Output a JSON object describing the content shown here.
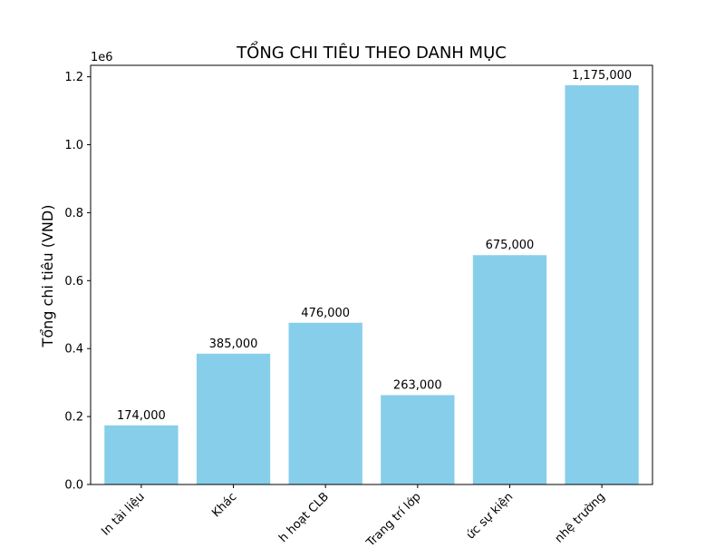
{
  "chart_data": {
    "type": "bar",
    "title": "TỔNG CHI TIÊU THEO DANH MỤC",
    "xlabel": "",
    "ylabel": "Tổng chi tiêu (VND)",
    "y_offset_label": "1e6",
    "categories": [
      "In tài liệu",
      "Khác",
      "Sinh hoạt CLB",
      "Trang trí lớp",
      "Tổ chức sự kiện",
      "Đồ dùng văn phòng phẩm / trang thiết bị nhà trường"
    ],
    "category_display": [
      "In tài liệu",
      "Khác",
      "h hoạt CLB",
      "Trang trí lớp",
      "ức sự kiện",
      "nhệ trường"
    ],
    "values": [
      174000,
      385000,
      476000,
      263000,
      675000,
      1175000
    ],
    "value_labels": [
      "174,000",
      "385,000",
      "476,000",
      "263,000",
      "675,000",
      "1,175,000"
    ],
    "ylim": [
      0,
      1233750
    ],
    "y_ticks": [
      0,
      200000,
      400000,
      600000,
      800000,
      1000000,
      1200000
    ],
    "y_tick_labels": [
      "0.0",
      "0.2",
      "0.4",
      "0.6",
      "0.8",
      "1.0",
      "1.2"
    ],
    "bar_color": "#87ceeb",
    "grid": false,
    "legend": "none"
  }
}
